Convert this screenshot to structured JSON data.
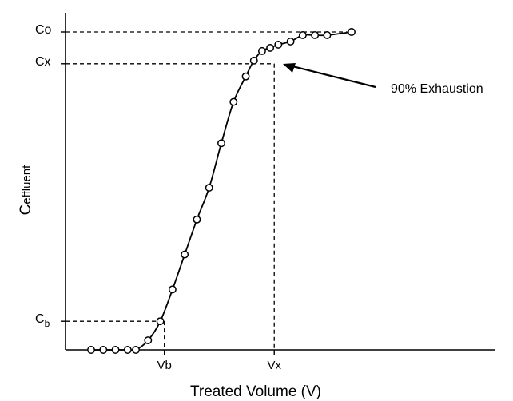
{
  "chart_data": {
    "type": "scatter",
    "title": "",
    "xlabel": "Treated Volume (V)",
    "ylabel_main": "C",
    "ylabel_sub": "effluent",
    "xlim": [
      0,
      100
    ],
    "ylim": [
      0,
      100
    ],
    "grid": false,
    "legend": "none",
    "x_ticks": [
      {
        "label": "Vb",
        "value": 24
      },
      {
        "label": "Vx",
        "value": 51
      }
    ],
    "y_ticks": [
      {
        "label": "Co",
        "value": 100,
        "sub": ""
      },
      {
        "label": "Cx",
        "value": 90,
        "sub": ""
      },
      {
        "label": "C",
        "value": 9,
        "sub": "b"
      }
    ],
    "reference_lines": [
      {
        "from": [
          0,
          100
        ],
        "to": [
          70,
          100
        ]
      },
      {
        "from": [
          0,
          90
        ],
        "to": [
          51,
          90
        ]
      },
      {
        "from": [
          51,
          90
        ],
        "to": [
          51,
          0
        ]
      },
      {
        "from": [
          0,
          9
        ],
        "to": [
          24,
          9
        ]
      },
      {
        "from": [
          24,
          9
        ],
        "to": [
          24,
          0
        ]
      }
    ],
    "annotation": {
      "text": "90% Exhaustion",
      "points_to": [
        51,
        90
      ]
    },
    "series": [
      {
        "points": [
          [
            6,
            0
          ],
          [
            9,
            0
          ],
          [
            12,
            0
          ],
          [
            15,
            0
          ],
          [
            17,
            0
          ],
          [
            20,
            3
          ],
          [
            23,
            9
          ],
          [
            26,
            19
          ],
          [
            29,
            30
          ],
          [
            32,
            41
          ],
          [
            35,
            51
          ],
          [
            38,
            65
          ],
          [
            41,
            78
          ],
          [
            44,
            86
          ],
          [
            46,
            91
          ],
          [
            48,
            94
          ],
          [
            50,
            95
          ],
          [
            52,
            96
          ],
          [
            55,
            97
          ],
          [
            58,
            99
          ],
          [
            61,
            99
          ],
          [
            64,
            99
          ],
          [
            70,
            100
          ]
        ]
      }
    ],
    "colors": {
      "line": "#000000",
      "marker_fill": "#ffffff",
      "axis": "#000000"
    }
  }
}
